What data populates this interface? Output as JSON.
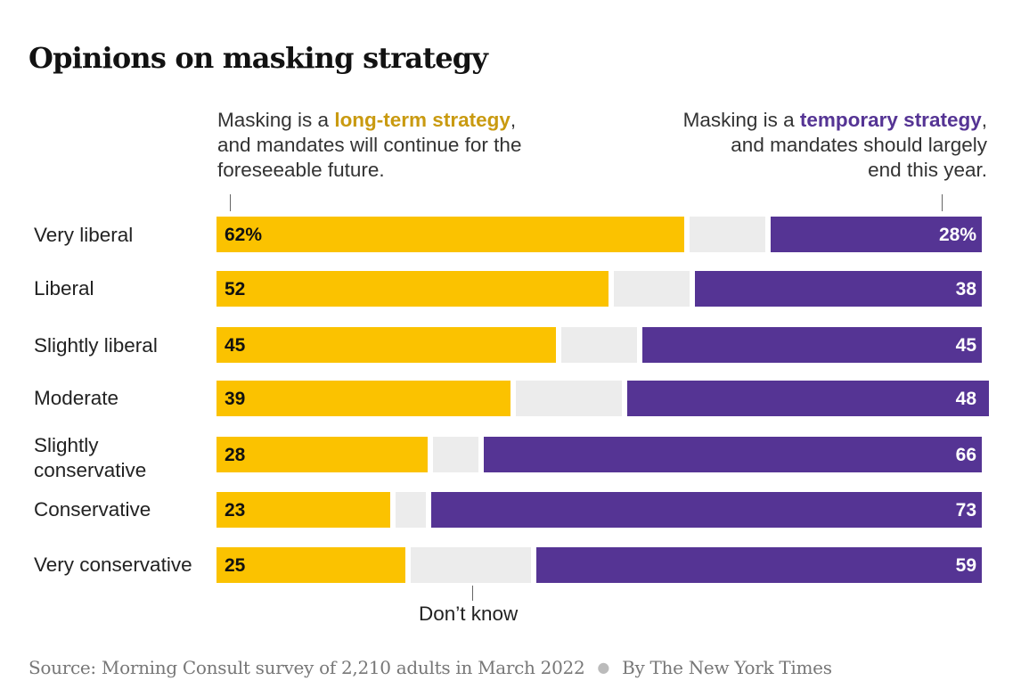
{
  "title": "Opinions on masking strategy",
  "annotation_left": {
    "prefix": "Masking is a ",
    "highlight": "long-term strategy",
    "suffix": ",",
    "line2": "and mandates will continue for the",
    "line3": "foreseeable future."
  },
  "annotation_right": {
    "prefix": "Masking is a ",
    "highlight": "temporary strategy",
    "suffix": ",",
    "line2": "and mandates should largely",
    "line3": "end this year."
  },
  "dont_know_label": "Don’t know",
  "source": "Source: Morning Consult survey of 2,210 adults in March 2022",
  "byline": "By The New York Times",
  "colors": {
    "long_term": "#fbc200",
    "long_term_text": "#c99a10",
    "dont_know": "#ececec",
    "temporary": "#553494"
  },
  "chart_data": {
    "type": "bar",
    "orientation": "horizontal-stacked",
    "categories": [
      "Very liberal",
      "Liberal",
      "Slightly liberal",
      "Moderate",
      "Slightly conservative",
      "Conservative",
      "Very conservative"
    ],
    "series": [
      {
        "name": "long-term strategy",
        "values": [
          62,
          52,
          45,
          39,
          28,
          23,
          25
        ],
        "labels": [
          "62%",
          "52",
          "45",
          "39",
          "28",
          "23",
          "25"
        ]
      },
      {
        "name": "Don’t know",
        "values": [
          10,
          10,
          10,
          14,
          6,
          4,
          16
        ]
      },
      {
        "name": "temporary strategy",
        "values": [
          28,
          38,
          45,
          48,
          66,
          73,
          59
        ],
        "labels": [
          "28%",
          "38",
          "45",
          "48",
          "66",
          "73",
          "59"
        ]
      }
    ],
    "xlim": [
      0,
      100
    ],
    "legend": "annotations above bars"
  }
}
